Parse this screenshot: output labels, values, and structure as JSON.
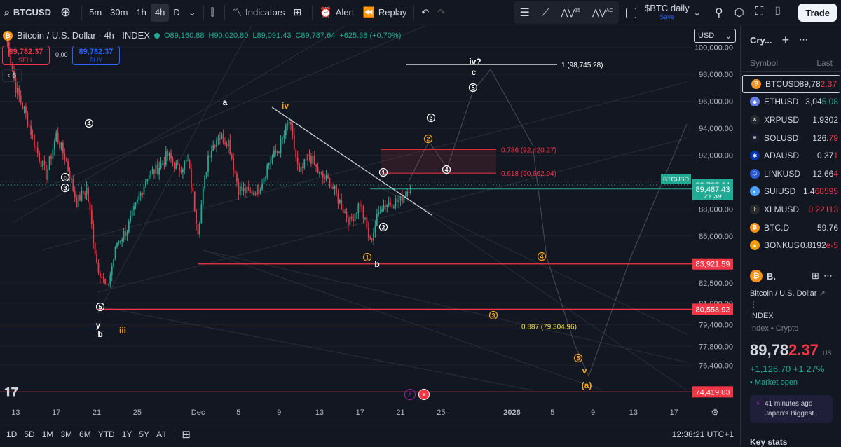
{
  "toolbar": {
    "symbol": "BTCUSD",
    "intervals": [
      "5m",
      "30m",
      "1h",
      "4h",
      "D"
    ],
    "active_interval": "4h",
    "indicators": "Indicators",
    "alert": "Alert",
    "replay": "Replay",
    "layout_name": "$BTC daily",
    "layout_save": "Save",
    "trade": "Trade",
    "fib_tools": [
      "1",
      "5",
      "A",
      "C"
    ]
  },
  "legend": {
    "title": "Bitcoin / U.S. Dollar · 4h · INDEX",
    "open": "O89,160.88",
    "high": "H90,020.80",
    "low": "L89,091.43",
    "close": "C89,787.64",
    "change": "+625.38 (+0.70%)",
    "sell_price": "89,782.37",
    "sell_label": "SELL",
    "spread": "0.00",
    "buy_price": "89,782.37",
    "buy_label": "BUY",
    "indicator_count": "6",
    "currency": "USD"
  },
  "chart_data": {
    "type": "candlestick",
    "title": "",
    "ylim": [
      73500,
      101600
    ],
    "y_ticks": [
      100000,
      98000,
      96000,
      94000,
      92000,
      90000,
      88000,
      86000,
      82500,
      81000,
      79400,
      77800,
      76400
    ],
    "y_tick_labels": [
      "100,000.00",
      "98,000.00",
      "96,000.00",
      "94,000.00",
      "92,000.00",
      "89,787.64",
      "88,000.00",
      "86,000.00",
      "82,500.00",
      "81,000.00",
      "79,400.00",
      "77,800.00",
      "76,400.00"
    ],
    "x_ticks": [
      "13",
      "17",
      "21",
      "25",
      "Dec",
      "5",
      "9",
      "13",
      "17",
      "21",
      "25",
      "2026",
      "5",
      "9",
      "13",
      "17"
    ],
    "x_range": [
      "Nov 12",
      "Jan 19"
    ],
    "price_path": [
      [
        "Nov 12",
        101000
      ],
      [
        "Nov 13",
        97000
      ],
      [
        "Nov 14",
        95000
      ],
      [
        "Nov 15",
        92500
      ],
      [
        "Nov 16",
        90500
      ],
      [
        "Nov 17",
        93500
      ],
      [
        "Nov 18",
        91500
      ],
      [
        "Nov 19",
        88500
      ],
      [
        "Nov 20",
        89500
      ],
      [
        "Nov 21",
        84000
      ],
      [
        "Nov 22",
        82000
      ],
      [
        "Nov 23",
        85500
      ],
      [
        "Nov 24",
        86500
      ],
      [
        "Nov 25",
        88500
      ],
      [
        "Nov 26",
        90500
      ],
      [
        "Nov 27",
        91000
      ],
      [
        "Nov 28",
        92000
      ],
      [
        "Nov 29",
        91000
      ],
      [
        "Nov 30",
        91500
      ],
      [
        "Dec 1",
        86500
      ],
      [
        "Dec 2",
        92000
      ],
      [
        "Dec 3",
        93500
      ],
      [
        "Dec 4",
        93000
      ],
      [
        "Dec 5",
        89500
      ],
      [
        "Dec 6",
        89200
      ],
      [
        "Dec 7",
        89500
      ],
      [
        "Dec 8",
        91500
      ],
      [
        "Dec 9",
        92500
      ],
      [
        "Dec 10",
        94500
      ],
      [
        "Dec 11",
        90500
      ],
      [
        "Dec 12",
        92000
      ],
      [
        "Dec 13",
        90500
      ],
      [
        "Dec 14",
        90000
      ],
      [
        "Dec 15",
        88500
      ],
      [
        "Dec 16",
        87000
      ],
      [
        "Dec 17",
        88500
      ],
      [
        "Dec 18",
        85500
      ],
      [
        "Dec 19",
        88200
      ],
      [
        "Dec 20",
        88500
      ],
      [
        "Dec 21",
        88600
      ],
      [
        "Dec 22",
        89787.64
      ]
    ],
    "price_lines": [
      {
        "label": "89,787.64",
        "value": 89787.64,
        "color": "#22ab94",
        "kind": "last"
      },
      {
        "label": "89,487.43",
        "value": 89487.43,
        "color": "#22ab94",
        "kind": "level"
      },
      {
        "label": "83,921.59",
        "value": 83921.59,
        "color": "#f23645",
        "kind": "level"
      },
      {
        "label": "80,558.92",
        "value": 80558.92,
        "color": "#f23645",
        "kind": "level"
      },
      {
        "label": "74,419.03",
        "value": 74419.03,
        "color": "#f23645",
        "kind": "level"
      }
    ],
    "last_price_tag": "BTCUSD",
    "countdown": "21:39",
    "fib_levels": [
      {
        "label": "1 (98,745.28)",
        "value": 98745.28,
        "color": "#ffffff"
      },
      {
        "label": "0.786 (92,420.27)",
        "value": 92420.27,
        "color": "#f23645"
      },
      {
        "label": "0.618 (90,662.94)",
        "value": 90662.94,
        "color": "#f23645"
      },
      {
        "label": "0.887 (79,304.96)",
        "value": 79304.96,
        "color": "#f7e03a"
      }
    ],
    "wave_labels": [
      {
        "text": "a",
        "color": "#ffffff"
      },
      {
        "text": "iv",
        "color": "#f5a623"
      },
      {
        "text": "iv?",
        "color": "#ffffff"
      },
      {
        "text": "c",
        "color": "#ffffff"
      },
      {
        "text": "b",
        "color": "#ffffff"
      },
      {
        "text": "y",
        "color": "#ffffff"
      },
      {
        "text": "b",
        "color": "#ffffff"
      },
      {
        "text": "iii",
        "color": "#f5a623"
      },
      {
        "text": "v",
        "color": "#f5a623"
      },
      {
        "text": "(a)",
        "color": "#f5a623"
      }
    ]
  },
  "range_bar": {
    "ranges": [
      "1D",
      "5D",
      "1M",
      "3M",
      "6M",
      "YTD",
      "1Y",
      "5Y",
      "All"
    ],
    "clock": "12:38:21 UTC+1"
  },
  "watchlist": {
    "title": "Cry...",
    "col_symbol": "Symbol",
    "col_last": "Last",
    "items": [
      {
        "symbol": "BTCUSD",
        "last_a": "89,78",
        "last_b": "2.37",
        "color": "#f7931a",
        "glyph": "₿",
        "dir": "down"
      },
      {
        "symbol": "ETHUSD",
        "last_a": "3,04",
        "last_b": "5.08",
        "color": "#627eea",
        "glyph": "◆",
        "dir": "up"
      },
      {
        "symbol": "XRPUSD",
        "last_a": "1.930",
        "last_b": "2",
        "color": "#23292f",
        "glyph": "✕",
        "dir": "none"
      },
      {
        "symbol": "SOLUSD",
        "last_a": "126.",
        "last_b": "79",
        "color": "#1b1b2f",
        "glyph": "≡",
        "dir": "down"
      },
      {
        "symbol": "ADAUSD",
        "last_a": "0.37",
        "last_b": "1",
        "color": "#0033ad",
        "glyph": "✱",
        "dir": "down"
      },
      {
        "symbol": "LINKUSD",
        "last_a": "12.66",
        "last_b": "4",
        "color": "#2a5ada",
        "glyph": "⬡",
        "dir": "down"
      },
      {
        "symbol": "SUIUSD",
        "last_a": "1.4",
        "last_b": "68595",
        "color": "#4da2ff",
        "glyph": "◐",
        "dir": "down"
      },
      {
        "symbol": "XLMUSD",
        "last_a": "",
        "last_b": "0.22113",
        "color": "#2b2b2b",
        "glyph": "✈",
        "dir": "down"
      },
      {
        "symbol": "BTC.D",
        "last_a": "59.76",
        "last_b": "",
        "color": "#f7931a",
        "glyph": "₿",
        "dir": "none"
      },
      {
        "symbol": "BONKUS",
        "last_a": "0.8192",
        "last_b": "e-5",
        "color": "#f59e0b",
        "glyph": "●",
        "dir": "down"
      }
    ]
  },
  "detail": {
    "short": "B.",
    "name": "Bitcoin / U.S. Dollar",
    "exchange": "INDEX",
    "type": "Index • Crypto",
    "price_a": "89,78",
    "price_b": "2.37",
    "currency": "US",
    "change": "+1,126.70",
    "change_pct": "+1.27%",
    "market": "• Market open",
    "news_time": "41 minutes ago",
    "news_title": "Japan's Biggest...",
    "keystats": "Key stats"
  }
}
